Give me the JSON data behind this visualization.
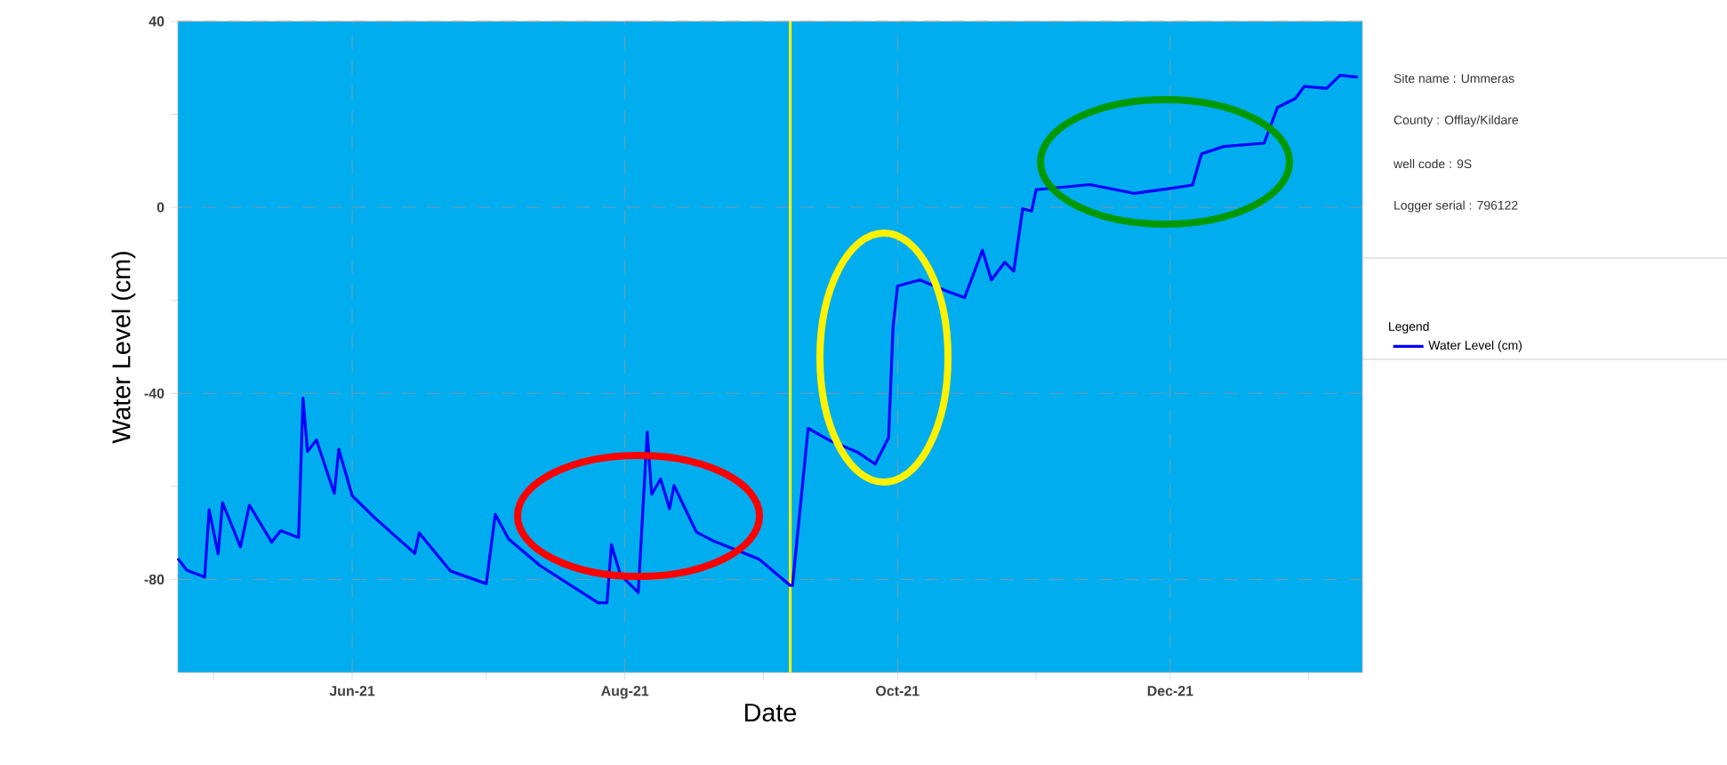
{
  "chart_data": {
    "type": "line",
    "xlabel": "Date",
    "ylabel": "Water Level (cm)",
    "legend_title": "Legend",
    "annotations": [
      "Site name : Ummeras",
      "County : Offlay/Kildare",
      "well code : 9S",
      "Logger serial : 796122"
    ],
    "xlim": [
      "2021-04-23",
      "2022-01-13"
    ],
    "xticks": [
      {
        "value": "2021-05-01",
        "label": null
      },
      {
        "value": "2021-06-01",
        "label": "Jun-21"
      },
      {
        "value": "2021-07-01",
        "label": null
      },
      {
        "value": "2021-08-01",
        "label": "Aug-21"
      },
      {
        "value": "2021-09-01",
        "label": null
      },
      {
        "value": "2021-10-01",
        "label": "Oct-21"
      },
      {
        "value": "2021-11-01",
        "label": null
      },
      {
        "value": "2021-12-01",
        "label": "Dec-21"
      },
      {
        "value": "2022-01-01",
        "label": null
      }
    ],
    "ylim": [
      -100,
      40
    ],
    "yticks": [
      {
        "value": -80,
        "label": "-80"
      },
      {
        "value": -60,
        "label": null
      },
      {
        "value": -40,
        "label": "-40"
      },
      {
        "value": -20,
        "label": null
      },
      {
        "value": 0,
        "label": "0"
      },
      {
        "value": 20,
        "label": null
      },
      {
        "value": 40,
        "label": "40"
      }
    ],
    "grid": true,
    "legend": "right",
    "line_style": "solid",
    "marker": "none",
    "ref_lines": [
      {
        "axis": "x",
        "value": "2021-09-07",
        "color": "#ffff00"
      }
    ],
    "series": [
      {
        "name": "Water Level (cm)",
        "color": "#0000ff",
        "x": [
          "2021-04-23",
          "2021-04-25",
          "2021-04-29",
          "2021-04-30",
          "2021-05-02",
          "2021-05-03",
          "2021-05-07",
          "2021-05-09",
          "2021-05-14",
          "2021-05-16",
          "2021-05-20",
          "2021-05-21",
          "2021-05-22",
          "2021-05-24",
          "2021-05-28",
          "2021-05-29",
          "2021-06-01",
          "2021-06-06",
          "2021-06-15",
          "2021-06-16",
          "2021-06-23",
          "2021-07-01",
          "2021-07-03",
          "2021-07-06",
          "2021-07-13",
          "2021-07-26",
          "2021-07-28",
          "2021-07-29",
          "2021-07-31",
          "2021-08-04",
          "2021-08-06",
          "2021-08-07",
          "2021-08-09",
          "2021-08-11",
          "2021-08-12",
          "2021-08-17",
          "2021-08-21",
          "2021-08-31",
          "2021-09-07T00:00",
          "2021-09-07T12:00",
          "2021-09-11",
          "2021-09-16",
          "2021-09-22",
          "2021-09-26",
          "2021-09-29",
          "2021-09-30",
          "2021-10-01",
          "2021-10-06",
          "2021-10-12",
          "2021-10-16",
          "2021-10-20",
          "2021-10-22",
          "2021-10-25",
          "2021-10-27",
          "2021-10-29",
          "2021-10-31",
          "2021-11-01",
          "2021-11-13",
          "2021-11-23",
          "2021-12-02",
          "2021-12-06",
          "2021-12-08",
          "2021-12-13",
          "2021-12-22",
          "2021-12-25",
          "2021-12-29",
          "2021-12-31",
          "2022-01-05",
          "2022-01-08",
          "2022-01-12"
        ],
        "values": [
          -75.5,
          -78,
          -79.5,
          -65,
          -74.5,
          -63.5,
          -73,
          -64,
          -72,
          -69.5,
          -71,
          -41,
          -52.5,
          -50,
          -61.5,
          -52,
          -62,
          -66.7,
          -74.4,
          -70,
          -78.2,
          -80.9,
          -66,
          -71.3,
          -77,
          -85,
          -85,
          -72.5,
          -79,
          -82.8,
          -48.3,
          -61.7,
          -58.4,
          -64.8,
          -59.8,
          -69.8,
          -71.8,
          -75.6,
          -81.3,
          -81.3,
          -47.5,
          -50.2,
          -52.6,
          -55.2,
          -49.5,
          -25.7,
          -16.9,
          -15.6,
          -18,
          -19.4,
          -9.2,
          -15.6,
          -11.8,
          -13.7,
          -0.3,
          -0.8,
          3.8,
          4.9,
          3,
          4.2,
          4.8,
          11.5,
          13.1,
          13.8,
          21.5,
          23.4,
          26,
          25.6,
          28.4,
          28
        ]
      }
    ]
  }
}
